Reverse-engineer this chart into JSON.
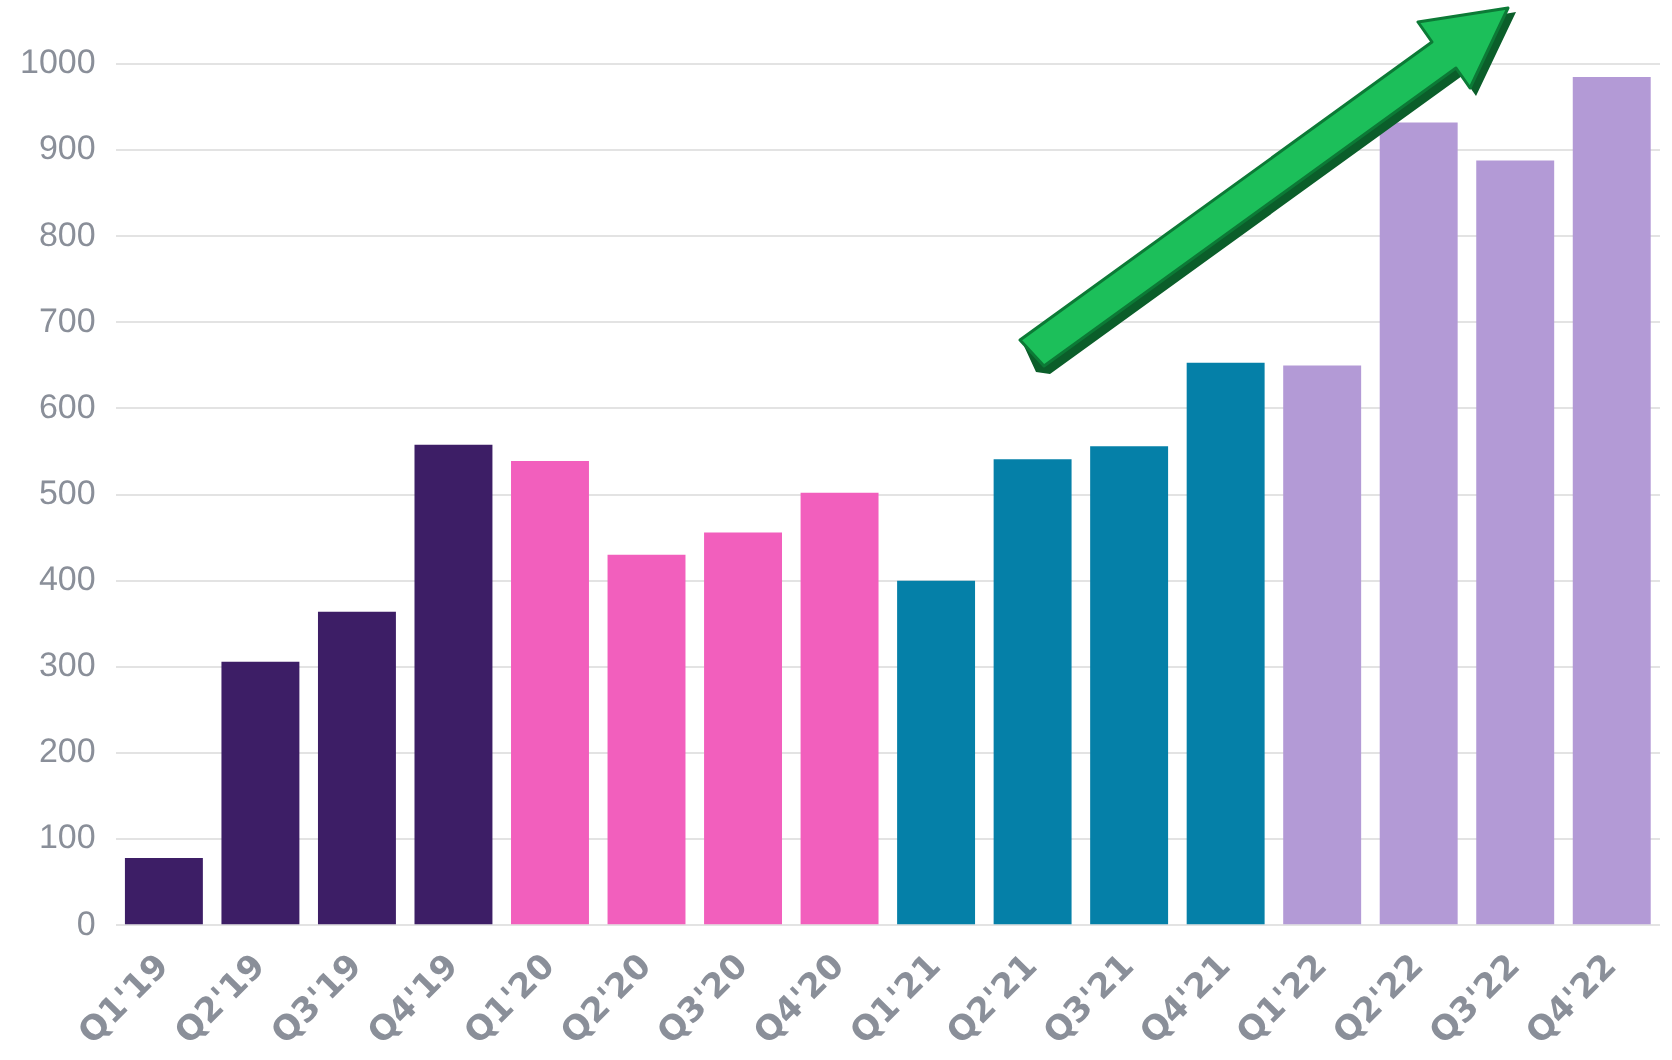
{
  "chart_data": {
    "type": "bar",
    "categories": [
      "Q1'19",
      "Q2'19",
      "Q3'19",
      "Q4'19",
      "Q1'20",
      "Q2'20",
      "Q3'20",
      "Q4'20",
      "Q1'21",
      "Q2'21",
      "Q3'21",
      "Q4'21",
      "Q1'22",
      "Q2'22",
      "Q3'22",
      "Q4'22"
    ],
    "values": [
      78,
      306,
      364,
      558,
      539,
      430,
      456,
      502,
      400,
      541,
      556,
      653,
      650,
      932,
      888,
      985
    ],
    "colors": [
      "#3d1e66",
      "#3d1e66",
      "#3d1e66",
      "#3d1e66",
      "#f25fbd",
      "#f25fbd",
      "#f25fbd",
      "#f25fbd",
      "#0580a8",
      "#0580a8",
      "#0580a8",
      "#0580a8",
      "#b39ad6",
      "#b39ad6",
      "#b39ad6",
      "#b39ad6"
    ],
    "ylim": [
      0,
      1000
    ],
    "yticks": [
      0,
      100,
      200,
      300,
      400,
      500,
      600,
      700,
      800,
      900,
      1000
    ],
    "grid": "y",
    "legend": false
  }
}
